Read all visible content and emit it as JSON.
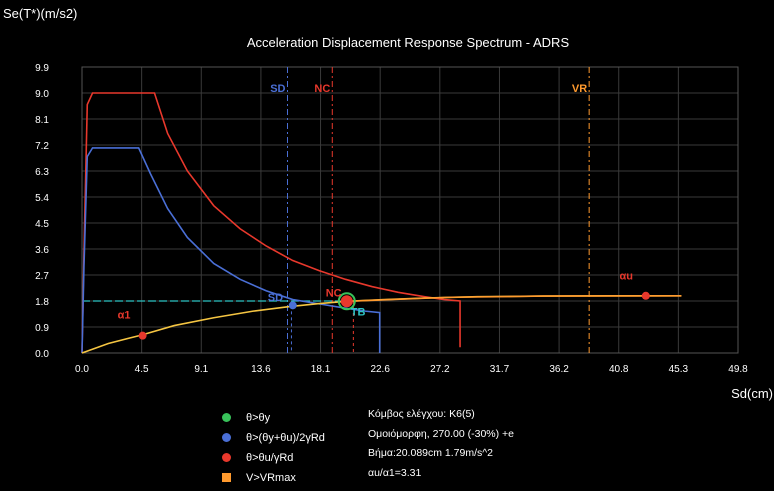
{
  "chart_data": {
    "type": "line",
    "title": "Acceleration Displacement Response Spectrum - ADRS",
    "ylabel": "Se(T*)(m/s2)",
    "xlabel": "Sd(cm)",
    "xlim": [
      0.0,
      49.8
    ],
    "ylim": [
      0.0,
      9.9
    ],
    "x_ticks": [
      "0.0",
      "4.5",
      "9.1",
      "13.6",
      "18.1",
      "22.6",
      "27.2",
      "31.7",
      "36.2",
      "40.8",
      "45.3",
      "49.8"
    ],
    "y_ticks": [
      "0.0",
      "0.9",
      "1.8",
      "2.7",
      "3.6",
      "4.5",
      "5.4",
      "6.3",
      "7.2",
      "8.1",
      "9.0",
      "9.9"
    ],
    "grid": true,
    "colors": {
      "red": "#e8382c",
      "blue": "#4a6fd6",
      "orange": "#ff9a2e",
      "green": "#38c25a",
      "cyan": "#2ec4c4",
      "yellow": "#f5c542"
    },
    "series": [
      {
        "color": "#e8382c",
        "x": [
          0.0,
          0.15,
          0.4,
          0.8,
          5.5,
          6.5,
          8,
          10,
          12,
          14,
          16,
          18,
          20,
          22,
          24,
          26,
          27.5,
          28.7,
          28.7
        ],
        "y": [
          0.0,
          3.5,
          8.6,
          9.0,
          9.0,
          7.6,
          6.3,
          5.1,
          4.3,
          3.7,
          3.2,
          2.85,
          2.55,
          2.3,
          2.1,
          1.95,
          1.85,
          1.8,
          0.2
        ]
      },
      {
        "color": "#4a6fd6",
        "x": [
          0.0,
          0.15,
          0.4,
          0.8,
          4.3,
          5.2,
          6.5,
          8,
          10,
          12,
          14,
          16,
          18,
          20,
          21.5,
          22.6,
          22.6
        ],
        "y": [
          0.0,
          3.0,
          6.8,
          7.1,
          7.1,
          6.2,
          5.0,
          4.0,
          3.1,
          2.55,
          2.15,
          1.85,
          1.7,
          1.55,
          1.45,
          1.4,
          0.0
        ]
      },
      {
        "color": "#f5c542",
        "x": [
          0.0,
          2,
          4.5,
          7,
          10,
          13,
          15.6,
          18,
          20.1,
          23,
          26,
          30,
          35,
          40,
          43,
          45.5
        ],
        "y": [
          0.0,
          0.33,
          0.62,
          0.95,
          1.22,
          1.45,
          1.6,
          1.71,
          1.79,
          1.85,
          1.9,
          1.95,
          1.97,
          1.98,
          1.98,
          1.98
        ]
      },
      {
        "color": "#ff9a2e",
        "x": [
          20.1,
          28,
          35,
          45.5
        ],
        "y": [
          1.79,
          1.93,
          1.97,
          1.98
        ]
      }
    ],
    "hline": {
      "y": 1.8,
      "x_end": 20.1,
      "color": "#2ec4c4"
    },
    "vlines": [
      {
        "label": "SD",
        "x": 15.6,
        "color": "#4a6fd6"
      },
      {
        "label": "NC",
        "x": 19.0,
        "color": "#e8382c"
      },
      {
        "label": "VR",
        "x": 38.5,
        "color": "#ff9a2e"
      }
    ],
    "drops": [
      {
        "x": 15.9,
        "y": 1.65,
        "color": "#4a6fd6"
      },
      {
        "x": 20.6,
        "y": 1.8,
        "color": "#e8382c"
      }
    ],
    "points": [
      {
        "label": "α1",
        "x": 4.6,
        "y": 0.6,
        "color": "#e8382c",
        "r": 4,
        "lx": 2.7,
        "ly": 1.2
      },
      {
        "label": "SD",
        "x": 16.0,
        "y": 1.65,
        "color": "#4a6fd6",
        "r": 4,
        "lx": 14.1,
        "ly": 1.8
      },
      {
        "label": "NC",
        "x": 20.1,
        "y": 1.79,
        "color": "#e8382c",
        "r": 6,
        "lx": 18.5,
        "ly": 1.95,
        "ring": "#38c25a"
      },
      {
        "label": "TB",
        "x": 20.1,
        "y": 1.79,
        "color": "#2ec4c4",
        "r": 0,
        "lx": 20.4,
        "ly": 1.3
      },
      {
        "label": "αu",
        "x": 42.8,
        "y": 1.98,
        "color": "#e8382c",
        "r": 4,
        "lx": 40.8,
        "ly": 2.55
      }
    ]
  },
  "legend": [
    {
      "label": "θ>θy",
      "color": "#38c25a",
      "shape": "circle"
    },
    {
      "label": "θ>(θy+θu)/2γRd",
      "color": "#4a6fd6",
      "shape": "circle"
    },
    {
      "label": "θ>θu/γRd",
      "color": "#e8382c",
      "shape": "circle"
    },
    {
      "label": "V>VRmax",
      "color": "#ff9a2e",
      "shape": "square"
    }
  ],
  "info": {
    "line1": "Κόμβος ελέγχου: K6(5)",
    "line2": "Ομοιόμορφη, 270.00 (-30%) +e",
    "line3": "Βήμα:20.089cm 1.79m/s^2",
    "line4": "αu/α1=3.31"
  }
}
